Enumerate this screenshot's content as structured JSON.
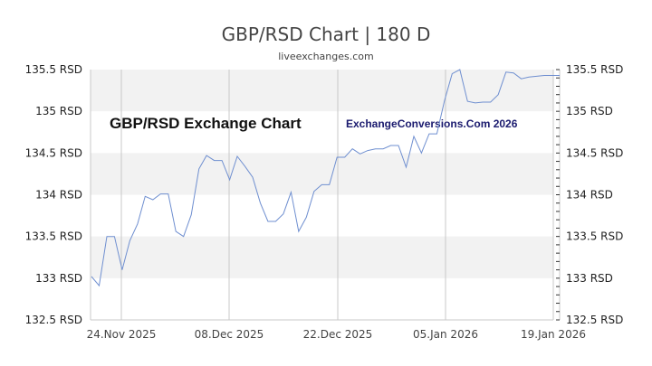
{
  "header": {
    "title": "GBP/RSD Chart | 180 D",
    "subtitle": "liveexchanges.com"
  },
  "watermarks": {
    "left": "GBP/RSD Exchange Chart",
    "right": "ExchangeConversions.Com 2026"
  },
  "colors": {
    "line": "#6f8fd0",
    "band": "#f2f2f2",
    "grid": "#c8c8c8",
    "watermark_right": "#1a1a6e"
  },
  "chart_data": {
    "type": "line",
    "title": "GBP/RSD Chart | 180 D",
    "subtitle": "liveexchanges.com",
    "xlabel": "",
    "ylabel": "RSD",
    "ylim": [
      132.5,
      135.5
    ],
    "y_ticks": [
      "135.5 RSD",
      "135 RSD",
      "134.5 RSD",
      "134 RSD",
      "133.5 RSD",
      "133 RSD",
      "132.5 RSD"
    ],
    "x_ticks": [
      "24.Nov 2025",
      "08.Dec 2025",
      "22.Dec 2025",
      "05.Jan 2026",
      "19.Jan 2026"
    ],
    "grid": true,
    "legend": "none",
    "series": [
      {
        "name": "GBP/RSD",
        "values": [
          133.02,
          132.91,
          133.5,
          133.5,
          133.1,
          133.45,
          133.65,
          133.98,
          133.94,
          134.01,
          134.01,
          133.56,
          133.5,
          133.76,
          134.31,
          134.47,
          134.41,
          134.41,
          134.18,
          134.46,
          134.34,
          134.21,
          133.9,
          133.68,
          133.68,
          133.77,
          134.03,
          133.56,
          133.73,
          134.04,
          134.12,
          134.12,
          134.45,
          134.45,
          134.55,
          134.49,
          134.53,
          134.55,
          134.55,
          134.59,
          134.59,
          134.33,
          134.7,
          134.5,
          134.73,
          134.73,
          135.13,
          135.45,
          135.5,
          135.12,
          135.1,
          135.11,
          135.11,
          135.2,
          135.47,
          135.46,
          135.39,
          135.41,
          135.42,
          135.43,
          135.43,
          135.43
        ]
      }
    ]
  }
}
